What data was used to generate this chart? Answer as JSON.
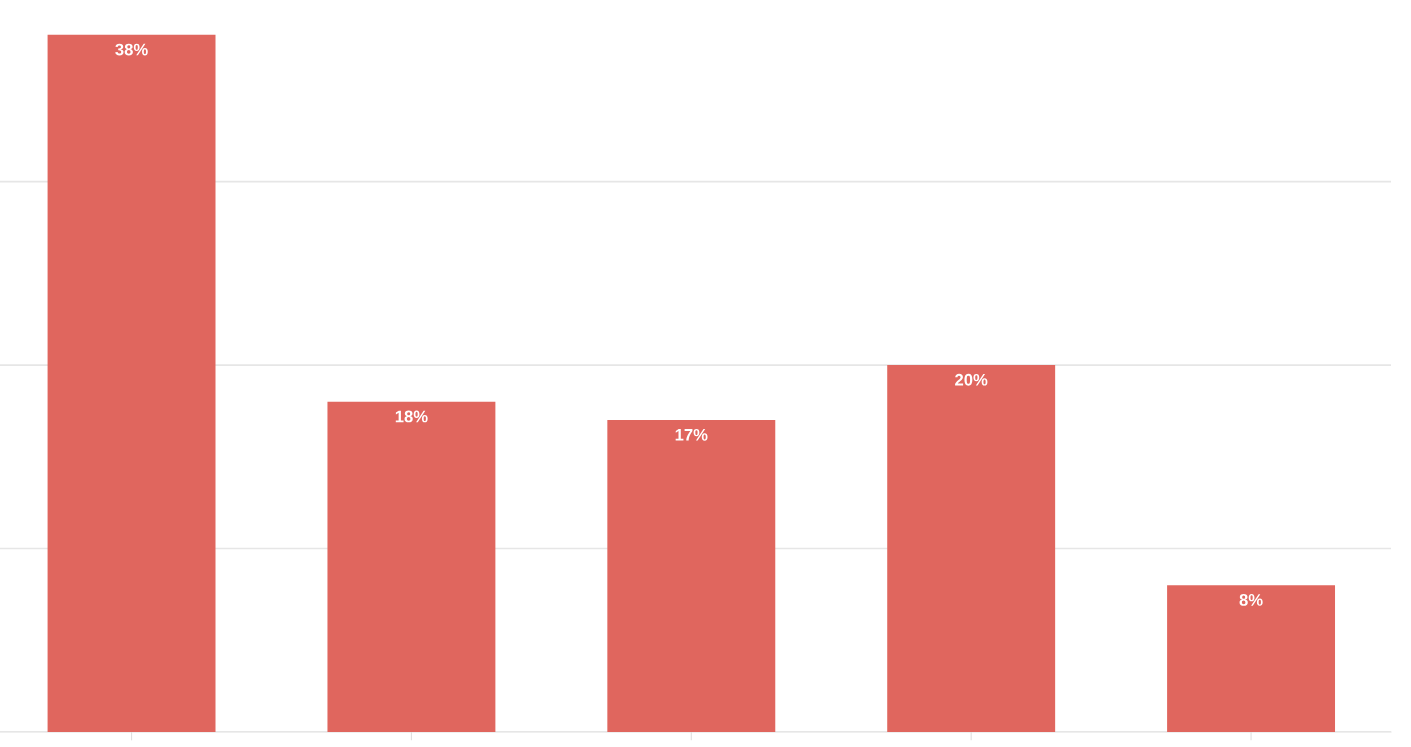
{
  "chart_data": {
    "type": "bar",
    "categories": [
      null,
      null,
      null,
      null,
      null
    ],
    "values": [
      38,
      18,
      17,
      20,
      8
    ],
    "value_labels": [
      "38%",
      "18%",
      "17%",
      "20%",
      "8%"
    ],
    "color": "#e0665e",
    "grid": "y"
  }
}
